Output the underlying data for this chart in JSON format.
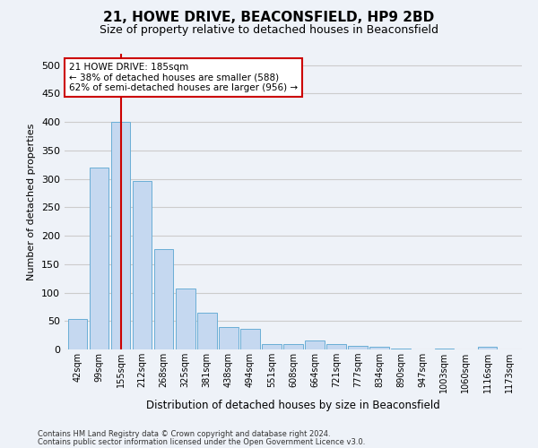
{
  "title": "21, HOWE DRIVE, BEACONSFIELD, HP9 2BD",
  "subtitle": "Size of property relative to detached houses in Beaconsfield",
  "xlabel": "Distribution of detached houses by size in Beaconsfield",
  "ylabel": "Number of detached properties",
  "footnote1": "Contains HM Land Registry data © Crown copyright and database right 2024.",
  "footnote2": "Contains public sector information licensed under the Open Government Licence v3.0.",
  "categories": [
    "42sqm",
    "99sqm",
    "155sqm",
    "212sqm",
    "268sqm",
    "325sqm",
    "381sqm",
    "438sqm",
    "494sqm",
    "551sqm",
    "608sqm",
    "664sqm",
    "721sqm",
    "777sqm",
    "834sqm",
    "890sqm",
    "947sqm",
    "1003sqm",
    "1060sqm",
    "1116sqm",
    "1173sqm"
  ],
  "values": [
    53,
    320,
    401,
    296,
    176,
    107,
    64,
    39,
    36,
    10,
    9,
    15,
    9,
    7,
    4,
    1,
    0,
    1,
    0,
    5,
    0
  ],
  "bar_color": "#c5d8f0",
  "bar_edge_color": "#6aaed6",
  "vline_x": 2.0,
  "vline_color": "#cc0000",
  "annotation_text": "21 HOWE DRIVE: 185sqm\n← 38% of detached houses are smaller (588)\n62% of semi-detached houses are larger (956) →",
  "annotation_box_color": "#ffffff",
  "annotation_box_edge": "#cc0000",
  "ylim": [
    0,
    520
  ],
  "yticks": [
    0,
    50,
    100,
    150,
    200,
    250,
    300,
    350,
    400,
    450,
    500
  ],
  "grid_color": "#cccccc",
  "bg_color": "#eef2f8"
}
